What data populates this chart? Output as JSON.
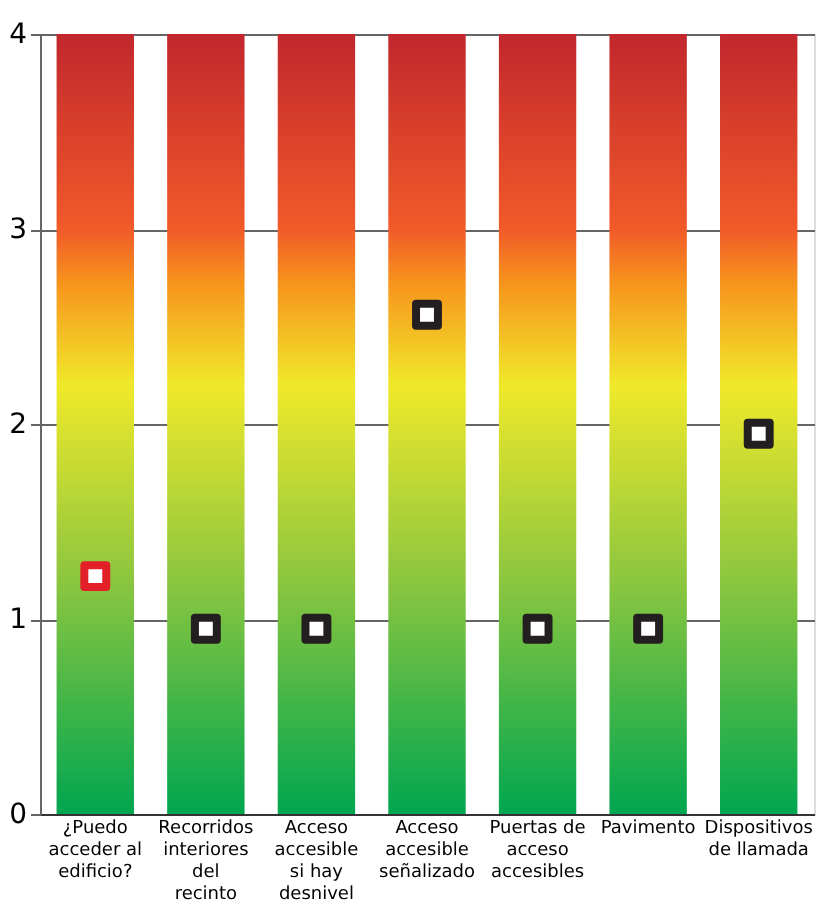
{
  "chart_data": {
    "type": "bar",
    "categories": [
      "¿Puedo acceder al edificio?",
      "Recorridos interiores del recinto",
      "Acceso accesible si hay desnivel",
      "Acceso accesible señalizado",
      "Puertas de acceso accesibles",
      "Pavimento",
      "Dispositivos de llamada"
    ],
    "series": [
      {
        "type": "bar",
        "color": "#f0e92a",
        "values": [
          4,
          4,
          4,
          4,
          4,
          4,
          4
        ]
      },
      {
        "type": "scatter",
        "marker": "square",
        "colors": [
          "#e32028",
          "#231f20",
          "#231f20",
          "#231f20",
          "#231f20",
          "#231f20",
          "#231f20"
        ],
        "values": [
          1.22,
          0.95,
          0.95,
          2.56,
          0.95,
          0.95,
          1.95
        ]
      }
    ],
    "ylim": [
      0,
      4
    ],
    "yticks": [
      0,
      1,
      2,
      3,
      4
    ],
    "grid": "y"
  }
}
